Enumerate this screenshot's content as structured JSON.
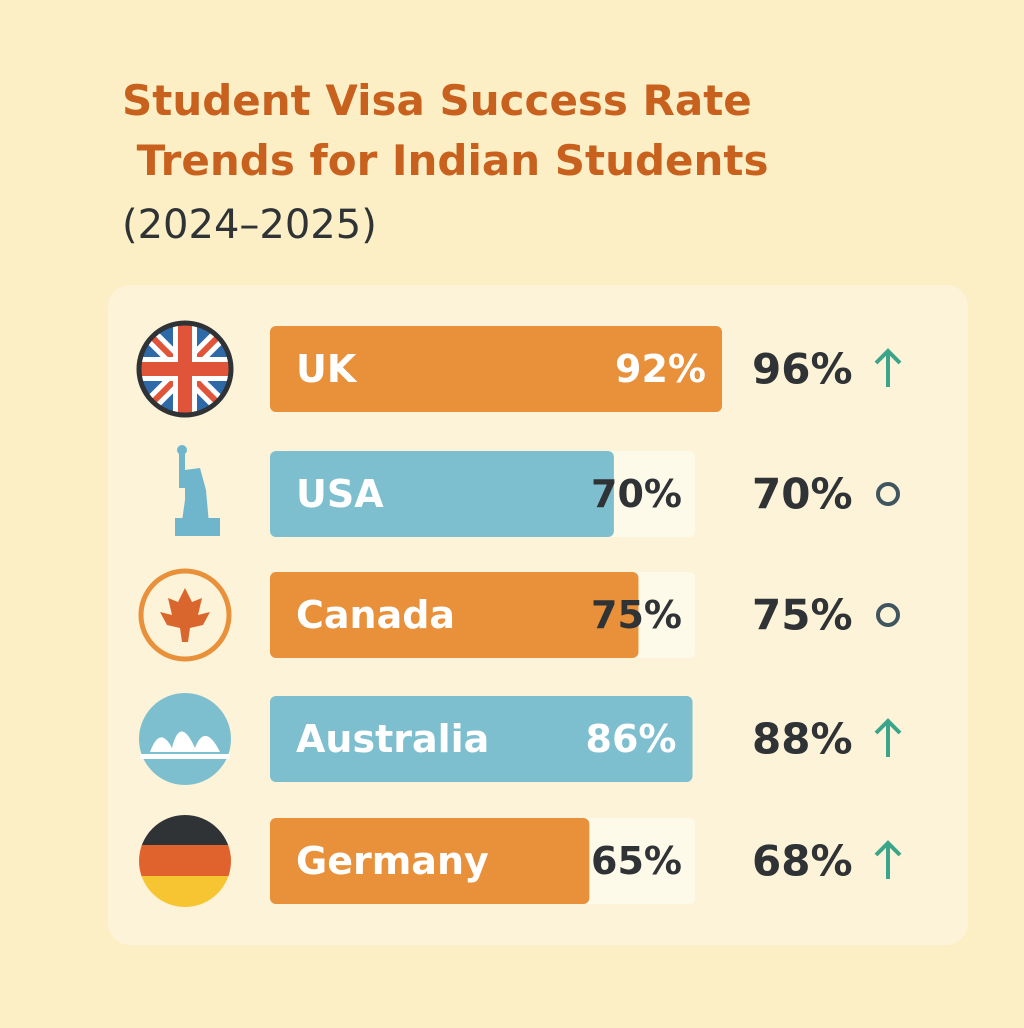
{
  "chart_data": {
    "type": "bar",
    "title": "Student Visa Success Rate Trends for Indian Students",
    "subtitle": "(2024–2025)",
    "categories": [
      "UK",
      "USA",
      "Canada",
      "Australia",
      "Germany"
    ],
    "series": [
      {
        "values": [
          92,
          70,
          75,
          86,
          65
        ],
        "value_labels": [
          "92%",
          "70%",
          "75%",
          "86%",
          "65%"
        ],
        "colors": [
          "#e8903a",
          "#7dbfcf",
          "#e8903a",
          "#7dbfcf",
          "#e8903a"
        ]
      },
      {
        "values": [
          96,
          70,
          75,
          88,
          68
        ],
        "value_labels": [
          "96%",
          "70%",
          "75%",
          "88%",
          "68%"
        ],
        "color": "#2f3336"
      }
    ]
  }
}
